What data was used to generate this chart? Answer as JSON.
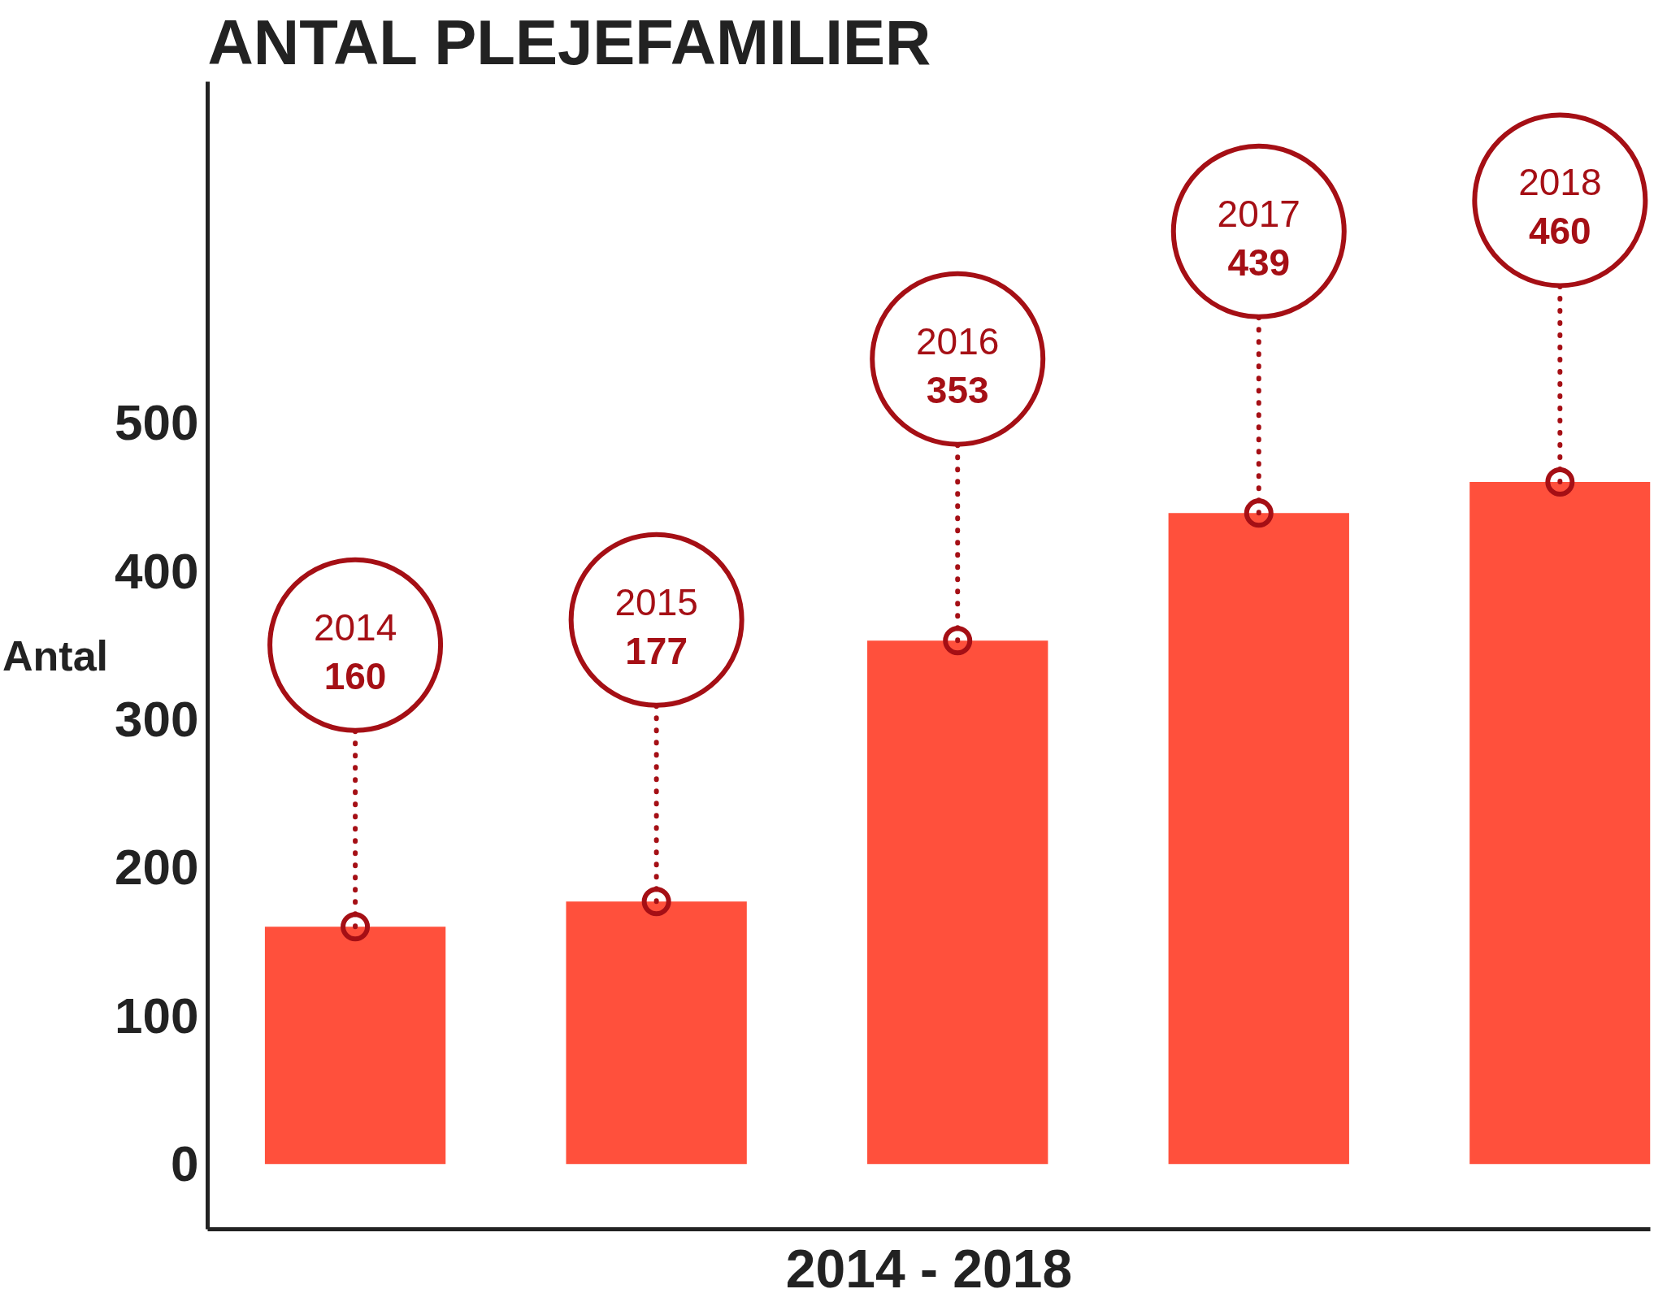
{
  "chart_data": {
    "type": "bar",
    "title": "ANTAL PLEJEFAMILIER",
    "xlabel": "2014 - 2018",
    "ylabel": "Antal",
    "categories": [
      "2014",
      "2015",
      "2016",
      "2017",
      "2018"
    ],
    "values": [
      160,
      177,
      353,
      439,
      460
    ],
    "color": "#ff503c",
    "ylim": [
      -44,
      730
    ],
    "yticks": [
      0,
      100,
      200,
      300,
      400,
      500
    ],
    "grid": false,
    "tick_labels": "y",
    "annotations": [
      {
        "text": "160",
        "x": "2014",
        "y": 160
      },
      {
        "text": "177",
        "x": "2015",
        "y": 177
      },
      {
        "text": "353",
        "x": "2016",
        "y": 353
      },
      {
        "text": "439",
        "x": "2017",
        "y": 439
      },
      {
        "text": "460",
        "x": "2018",
        "y": 460
      }
    ]
  }
}
